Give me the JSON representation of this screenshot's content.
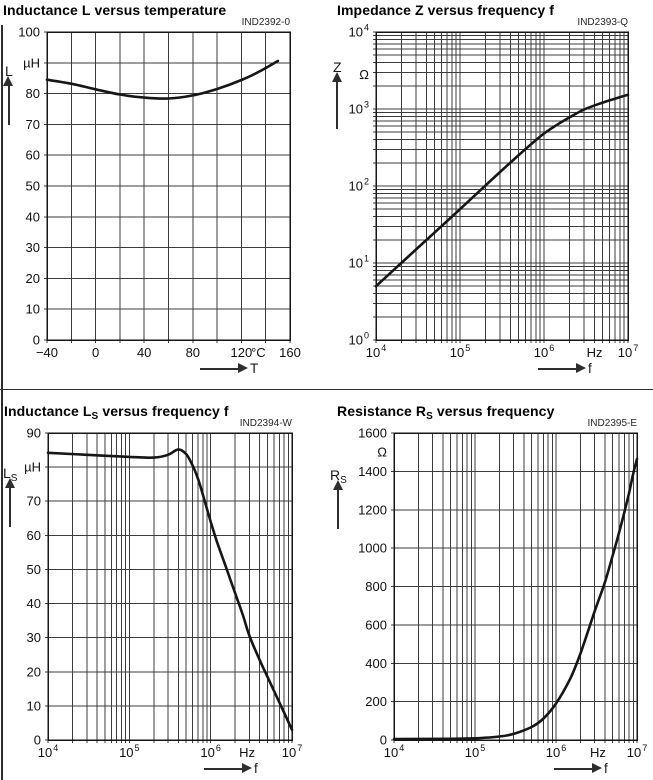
{
  "colors": {
    "background": "#ffffff",
    "grid": "#3c3c3c",
    "frame": "#161616",
    "curve": "#161616",
    "text": "#111111",
    "title": "#000000",
    "code": "#262626",
    "divider": "#2f2f2f"
  },
  "chart_data": [
    {
      "type": "line",
      "title_pre": "Inductance L",
      "title_sub": "",
      "title_post": " versus temperature",
      "code": "IND2392-0",
      "y_axis": {
        "letter": "L",
        "letter_sub": "",
        "unit": "µH",
        "scale": "linear",
        "min": 0,
        "max": 100,
        "grid_step": 10,
        "tick_labels": [
          {
            "v": 100,
            "t": "100"
          },
          {
            "v": 90,
            "t": "µH"
          },
          {
            "v": 80,
            "t": "80"
          },
          {
            "v": 70,
            "t": "70"
          },
          {
            "v": 60,
            "t": "60"
          },
          {
            "v": 50,
            "t": "50"
          },
          {
            "v": 40,
            "t": "40"
          },
          {
            "v": 30,
            "t": "30"
          },
          {
            "v": 20,
            "t": "20"
          },
          {
            "v": 10,
            "t": "10"
          },
          {
            "v": 0,
            "t": "0"
          }
        ]
      },
      "x_axis": {
        "letter": "T",
        "unit": "°C",
        "scale": "linear",
        "min": -40,
        "max": 160,
        "grid_step": 20,
        "tick_labels": [
          {
            "v": -40,
            "t": "−40"
          },
          {
            "v": 0,
            "t": "0"
          },
          {
            "v": 40,
            "t": "40"
          },
          {
            "v": 80,
            "t": "80"
          },
          {
            "v": 120,
            "t": "120"
          },
          {
            "v": 134,
            "t": "°C"
          },
          {
            "v": 160,
            "t": "160"
          }
        ]
      },
      "series": [
        {
          "name": "L vs T",
          "points": [
            [
              -40,
              84.5
            ],
            [
              -20,
              83.2
            ],
            [
              0,
              81.4
            ],
            [
              20,
              79.7
            ],
            [
              40,
              78.7
            ],
            [
              60,
              78.4
            ],
            [
              80,
              79.4
            ],
            [
              100,
              81.5
            ],
            [
              120,
              84.4
            ],
            [
              135,
              87.2
            ],
            [
              150,
              90.6
            ]
          ]
        }
      ]
    },
    {
      "type": "line",
      "title_pre": "Impedance Z versus frequency f",
      "title_sub": "",
      "title_post": "",
      "code": "IND2393-Q",
      "y_axis": {
        "letter": "Z",
        "letter_sub": "",
        "unit": "Ω",
        "scale": "log",
        "min": 1,
        "max": 10000,
        "tick_labels": [
          {
            "v": 10000,
            "t": "10^4"
          },
          {
            "v": 2800,
            "t": "Ω"
          },
          {
            "v": 1000,
            "t": "10^3"
          },
          {
            "v": 100,
            "t": "10^2"
          },
          {
            "v": 10,
            "t": "10^1"
          },
          {
            "v": 1,
            "t": "10^0"
          }
        ]
      },
      "x_axis": {
        "letter": "f",
        "unit": "Hz",
        "scale": "log",
        "min": 10000,
        "max": 10000000,
        "tick_labels": [
          {
            "v": 10000,
            "t": "10^4"
          },
          {
            "v": 100000,
            "t": "10^5"
          },
          {
            "v": 1000000,
            "t": "10^6"
          },
          {
            "v": 4000000,
            "t": "Hz"
          },
          {
            "v": 10000000,
            "t": "10^7"
          }
        ]
      },
      "series": [
        {
          "name": "Z vs f",
          "points": [
            [
              10000,
              5
            ],
            [
              20000,
              10
            ],
            [
              50000,
              25
            ],
            [
              100000,
              50
            ],
            [
              200000,
              101
            ],
            [
              300000,
              152
            ],
            [
              500000,
              252
            ],
            [
              700000,
              348
            ],
            [
              1000000,
              480
            ],
            [
              1500000,
              645
            ],
            [
              2000000,
              775
            ],
            [
              3000000,
              985
            ],
            [
              5000000,
              1210
            ],
            [
              7000000,
              1360
            ],
            [
              10000000,
              1530
            ]
          ]
        }
      ]
    },
    {
      "type": "line",
      "title_pre": "Inductance L",
      "title_sub": "S",
      "title_post": " versus frequency f",
      "code": "IND2394-W",
      "y_axis": {
        "letter": "L",
        "letter_sub": "S",
        "unit": "µH",
        "scale": "linear",
        "min": 0,
        "max": 90,
        "grid_step": 10,
        "tick_labels": [
          {
            "v": 90,
            "t": "90"
          },
          {
            "v": 80,
            "t": "µH"
          },
          {
            "v": 70,
            "t": "70"
          },
          {
            "v": 60,
            "t": "60"
          },
          {
            "v": 50,
            "t": "50"
          },
          {
            "v": 40,
            "t": "40"
          },
          {
            "v": 30,
            "t": "30"
          },
          {
            "v": 20,
            "t": "20"
          },
          {
            "v": 10,
            "t": "10"
          },
          {
            "v": 0,
            "t": "0"
          }
        ]
      },
      "x_axis": {
        "letter": "f",
        "unit": "Hz",
        "scale": "log",
        "min": 10000,
        "max": 10000000,
        "tick_labels": [
          {
            "v": 10000,
            "t": "10^4"
          },
          {
            "v": 100000,
            "t": "10^5"
          },
          {
            "v": 1000000,
            "t": "10^6"
          },
          {
            "v": 2800000,
            "t": "Hz"
          },
          {
            "v": 10000000,
            "t": "10^7"
          }
        ]
      },
      "series": [
        {
          "name": "Ls vs f",
          "points": [
            [
              10000,
              84.2
            ],
            [
              30000,
              83.6
            ],
            [
              100000,
              83
            ],
            [
              200000,
              82.8
            ],
            [
              300000,
              83.6
            ],
            [
              400000,
              85.2
            ],
            [
              500000,
              83.8
            ],
            [
              600000,
              80.5
            ],
            [
              700000,
              76.5
            ],
            [
              800000,
              72
            ],
            [
              1000000,
              64
            ],
            [
              1200000,
              58
            ],
            [
              1500000,
              51.5
            ],
            [
              2000000,
              43
            ],
            [
              2500000,
              36.5
            ],
            [
              3000000,
              30.5
            ],
            [
              4000000,
              23.5
            ],
            [
              5000000,
              18.5
            ],
            [
              7000000,
              11
            ],
            [
              10000000,
              3
            ]
          ]
        }
      ]
    },
    {
      "type": "line",
      "title_pre": "Resistance R",
      "title_sub": "S",
      "title_post": " versus frequency",
      "code": "IND2395-E",
      "y_axis": {
        "letter": "R",
        "letter_sub": "S",
        "unit": "Ω",
        "scale": "linear",
        "min": 0,
        "max": 1600,
        "grid_step": 200,
        "tick_labels": [
          {
            "v": 1600,
            "t": "1600"
          },
          {
            "v": 1500,
            "t": "Ω"
          },
          {
            "v": 1400,
            "t": "1400"
          },
          {
            "v": 1200,
            "t": "1200"
          },
          {
            "v": 1000,
            "t": "1000"
          },
          {
            "v": 800,
            "t": "800"
          },
          {
            "v": 600,
            "t": "600"
          },
          {
            "v": 400,
            "t": "400"
          },
          {
            "v": 200,
            "t": "200"
          },
          {
            "v": 0,
            "t": "0"
          }
        ]
      },
      "x_axis": {
        "letter": "f",
        "unit": "Hz",
        "scale": "log",
        "min": 10000,
        "max": 10000000,
        "tick_labels": [
          {
            "v": 10000,
            "t": "10^4"
          },
          {
            "v": 100000,
            "t": "10^5"
          },
          {
            "v": 1000000,
            "t": "10^6"
          },
          {
            "v": 3300000,
            "t": "Hz"
          },
          {
            "v": 10000000,
            "t": "10^7"
          }
        ]
      },
      "series": [
        {
          "name": "Rs vs f",
          "points": [
            [
              10000,
              5
            ],
            [
              50000,
              6
            ],
            [
              100000,
              9
            ],
            [
              200000,
              18
            ],
            [
              300000,
              32
            ],
            [
              500000,
              68
            ],
            [
              700000,
              112
            ],
            [
              1000000,
              190
            ],
            [
              1500000,
              320
            ],
            [
              2000000,
              450
            ],
            [
              3000000,
              670
            ],
            [
              4000000,
              820
            ],
            [
              5000000,
              960
            ],
            [
              6000000,
              1080
            ],
            [
              7000000,
              1190
            ],
            [
              8000000,
              1290
            ],
            [
              9000000,
              1390
            ],
            [
              10000000,
              1465
            ]
          ]
        }
      ]
    }
  ]
}
